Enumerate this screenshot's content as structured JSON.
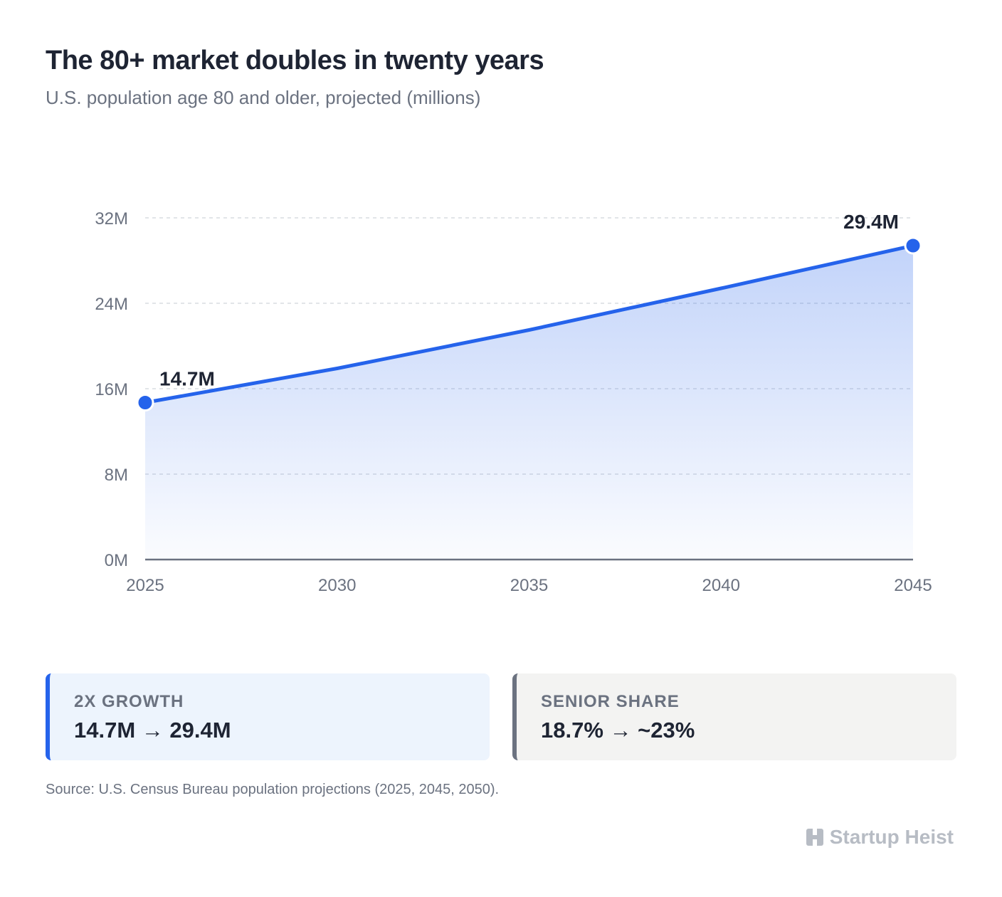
{
  "header": {
    "title": "The 80+ market doubles in twenty years",
    "subtitle": "U.S. population age 80 and older, projected (millions)"
  },
  "chart_data": {
    "type": "area",
    "title": "The 80+ market doubles in twenty years",
    "subtitle": "U.S. population age 80 and older, projected (millions)",
    "xlabel": "",
    "ylabel": "",
    "x": [
      2025,
      2030,
      2035,
      2040,
      2045
    ],
    "x_tick_labels": [
      "2025",
      "2030",
      "2035",
      "2040",
      "2045"
    ],
    "series": [
      {
        "values": [
          14.7,
          17.9,
          21.5,
          25.4,
          29.4
        ],
        "color": "#2563eb"
      }
    ],
    "ylim": [
      0,
      32
    ],
    "y_ticks": [
      0,
      8,
      16,
      24,
      32
    ],
    "y_tick_labels": [
      "0M",
      "8M",
      "16M",
      "24M",
      "32M"
    ],
    "annotations": [
      {
        "x": 2025,
        "y": 14.7,
        "label": "14.7M"
      },
      {
        "x": 2045,
        "y": 29.4,
        "label": "29.4M"
      }
    ],
    "grid": true,
    "grid_style": "dashed horizontal",
    "fill": "gradient #2563eb to white",
    "legend": "none"
  },
  "cards": [
    {
      "label": "2X GROWTH",
      "value": "14.7M → 29.4M",
      "accent": "#2563eb"
    },
    {
      "label": "SENIOR SHARE",
      "value": "18.7% → ~23%",
      "accent": "#6b7280"
    }
  ],
  "footer": {
    "source": "Source: U.S. Census Bureau population projections (2025, 2045, 2050).",
    "brand_icon": "building-icon",
    "brand": "Startup Heist"
  }
}
